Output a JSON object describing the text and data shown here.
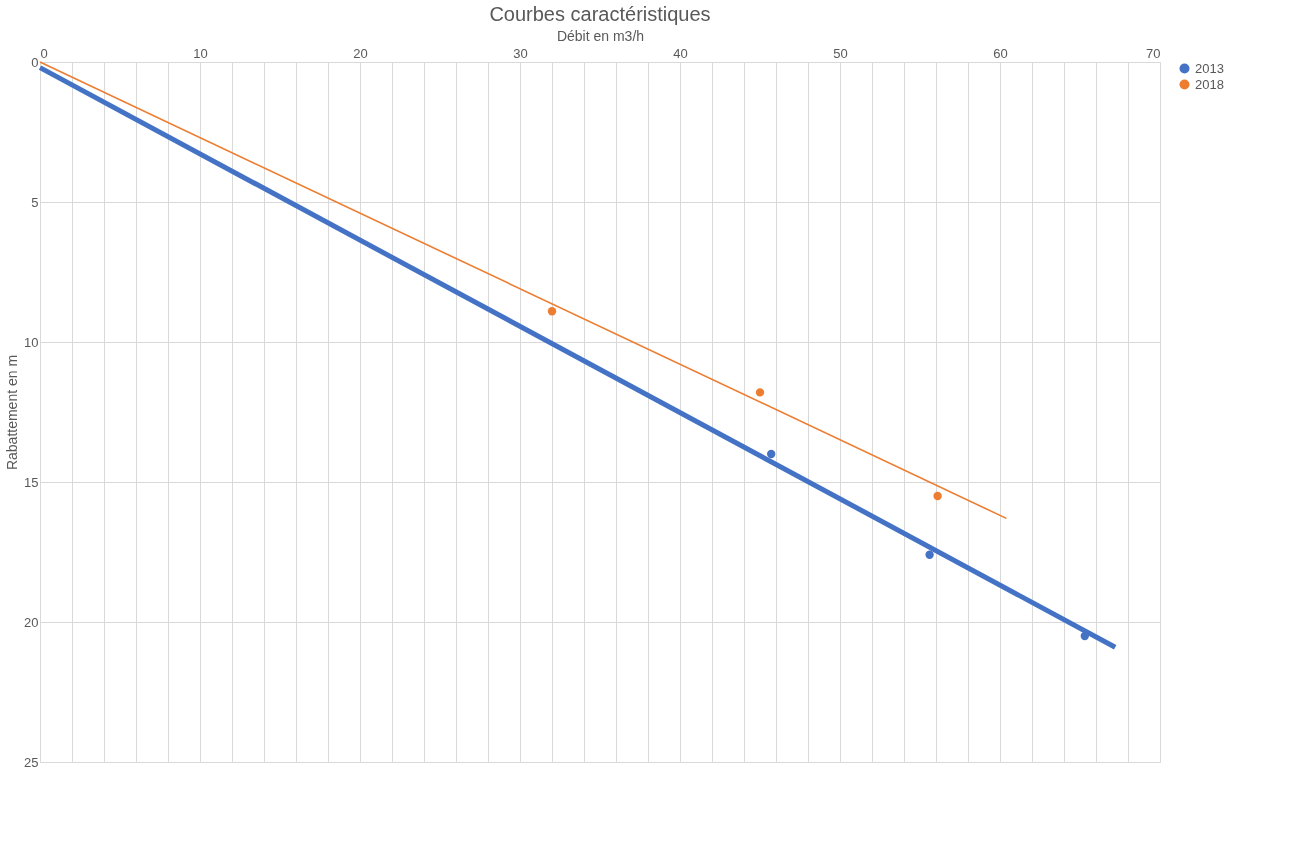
{
  "chart_data": {
    "type": "scatter",
    "title": "Courbes caractéristiques",
    "xlabel": "Débit en m3/h",
    "ylabel": "Rabattement en m",
    "xlim": [
      0,
      70
    ],
    "ylim": [
      25,
      0
    ],
    "xticks": [
      0,
      {
        "value": 2,
        "label": null
      },
      {
        "value": 4,
        "label": null
      },
      {
        "value": 6,
        "label": null
      },
      {
        "value": 8,
        "label": null
      },
      10,
      {
        "value": 12,
        "label": null
      },
      {
        "value": 14,
        "label": null
      },
      {
        "value": 16,
        "label": null
      },
      {
        "value": 18,
        "label": null
      },
      20,
      {
        "value": 22,
        "label": null
      },
      {
        "value": 24,
        "label": null
      },
      {
        "value": 26,
        "label": null
      },
      {
        "value": 28,
        "label": null
      },
      30,
      {
        "value": 32,
        "label": null
      },
      {
        "value": 34,
        "label": null
      },
      {
        "value": 36,
        "label": null
      },
      {
        "value": 38,
        "label": null
      },
      40,
      {
        "value": 42,
        "label": null
      },
      {
        "value": 44,
        "label": null
      },
      {
        "value": 46,
        "label": null
      },
      {
        "value": 48,
        "label": null
      },
      50,
      {
        "value": 52,
        "label": null
      },
      {
        "value": 54,
        "label": null
      },
      {
        "value": 56,
        "label": null
      },
      {
        "value": 58,
        "label": null
      },
      60,
      {
        "value": 62,
        "label": null
      },
      {
        "value": 64,
        "label": null
      },
      {
        "value": 66,
        "label": null
      },
      {
        "value": 68,
        "label": null
      },
      70
    ],
    "yticks": [
      0,
      5,
      10,
      15,
      20,
      25
    ],
    "grid": true,
    "legend": "right",
    "marker": "circle",
    "series": [
      {
        "name": "2013",
        "color": "#4472c4",
        "x": [
          45.7,
          55.6,
          65.3
        ],
        "values": [
          14.0,
          17.6,
          20.5
        ]
      },
      {
        "name": "2018",
        "color": "#ed7d31",
        "x": [
          32.0,
          45.0,
          56.1
        ],
        "values": [
          8.9,
          11.8,
          15.5
        ]
      },
      {
        "type": "line",
        "marker": "none",
        "color": "#4472c4",
        "x": [
          0,
          67.2
        ],
        "values": [
          0.2,
          20.9
        ]
      },
      {
        "type": "line",
        "marker": "none",
        "color": "#ed7d31",
        "x": [
          0,
          60.4
        ],
        "values": [
          0.0,
          16.3
        ]
      }
    ]
  }
}
